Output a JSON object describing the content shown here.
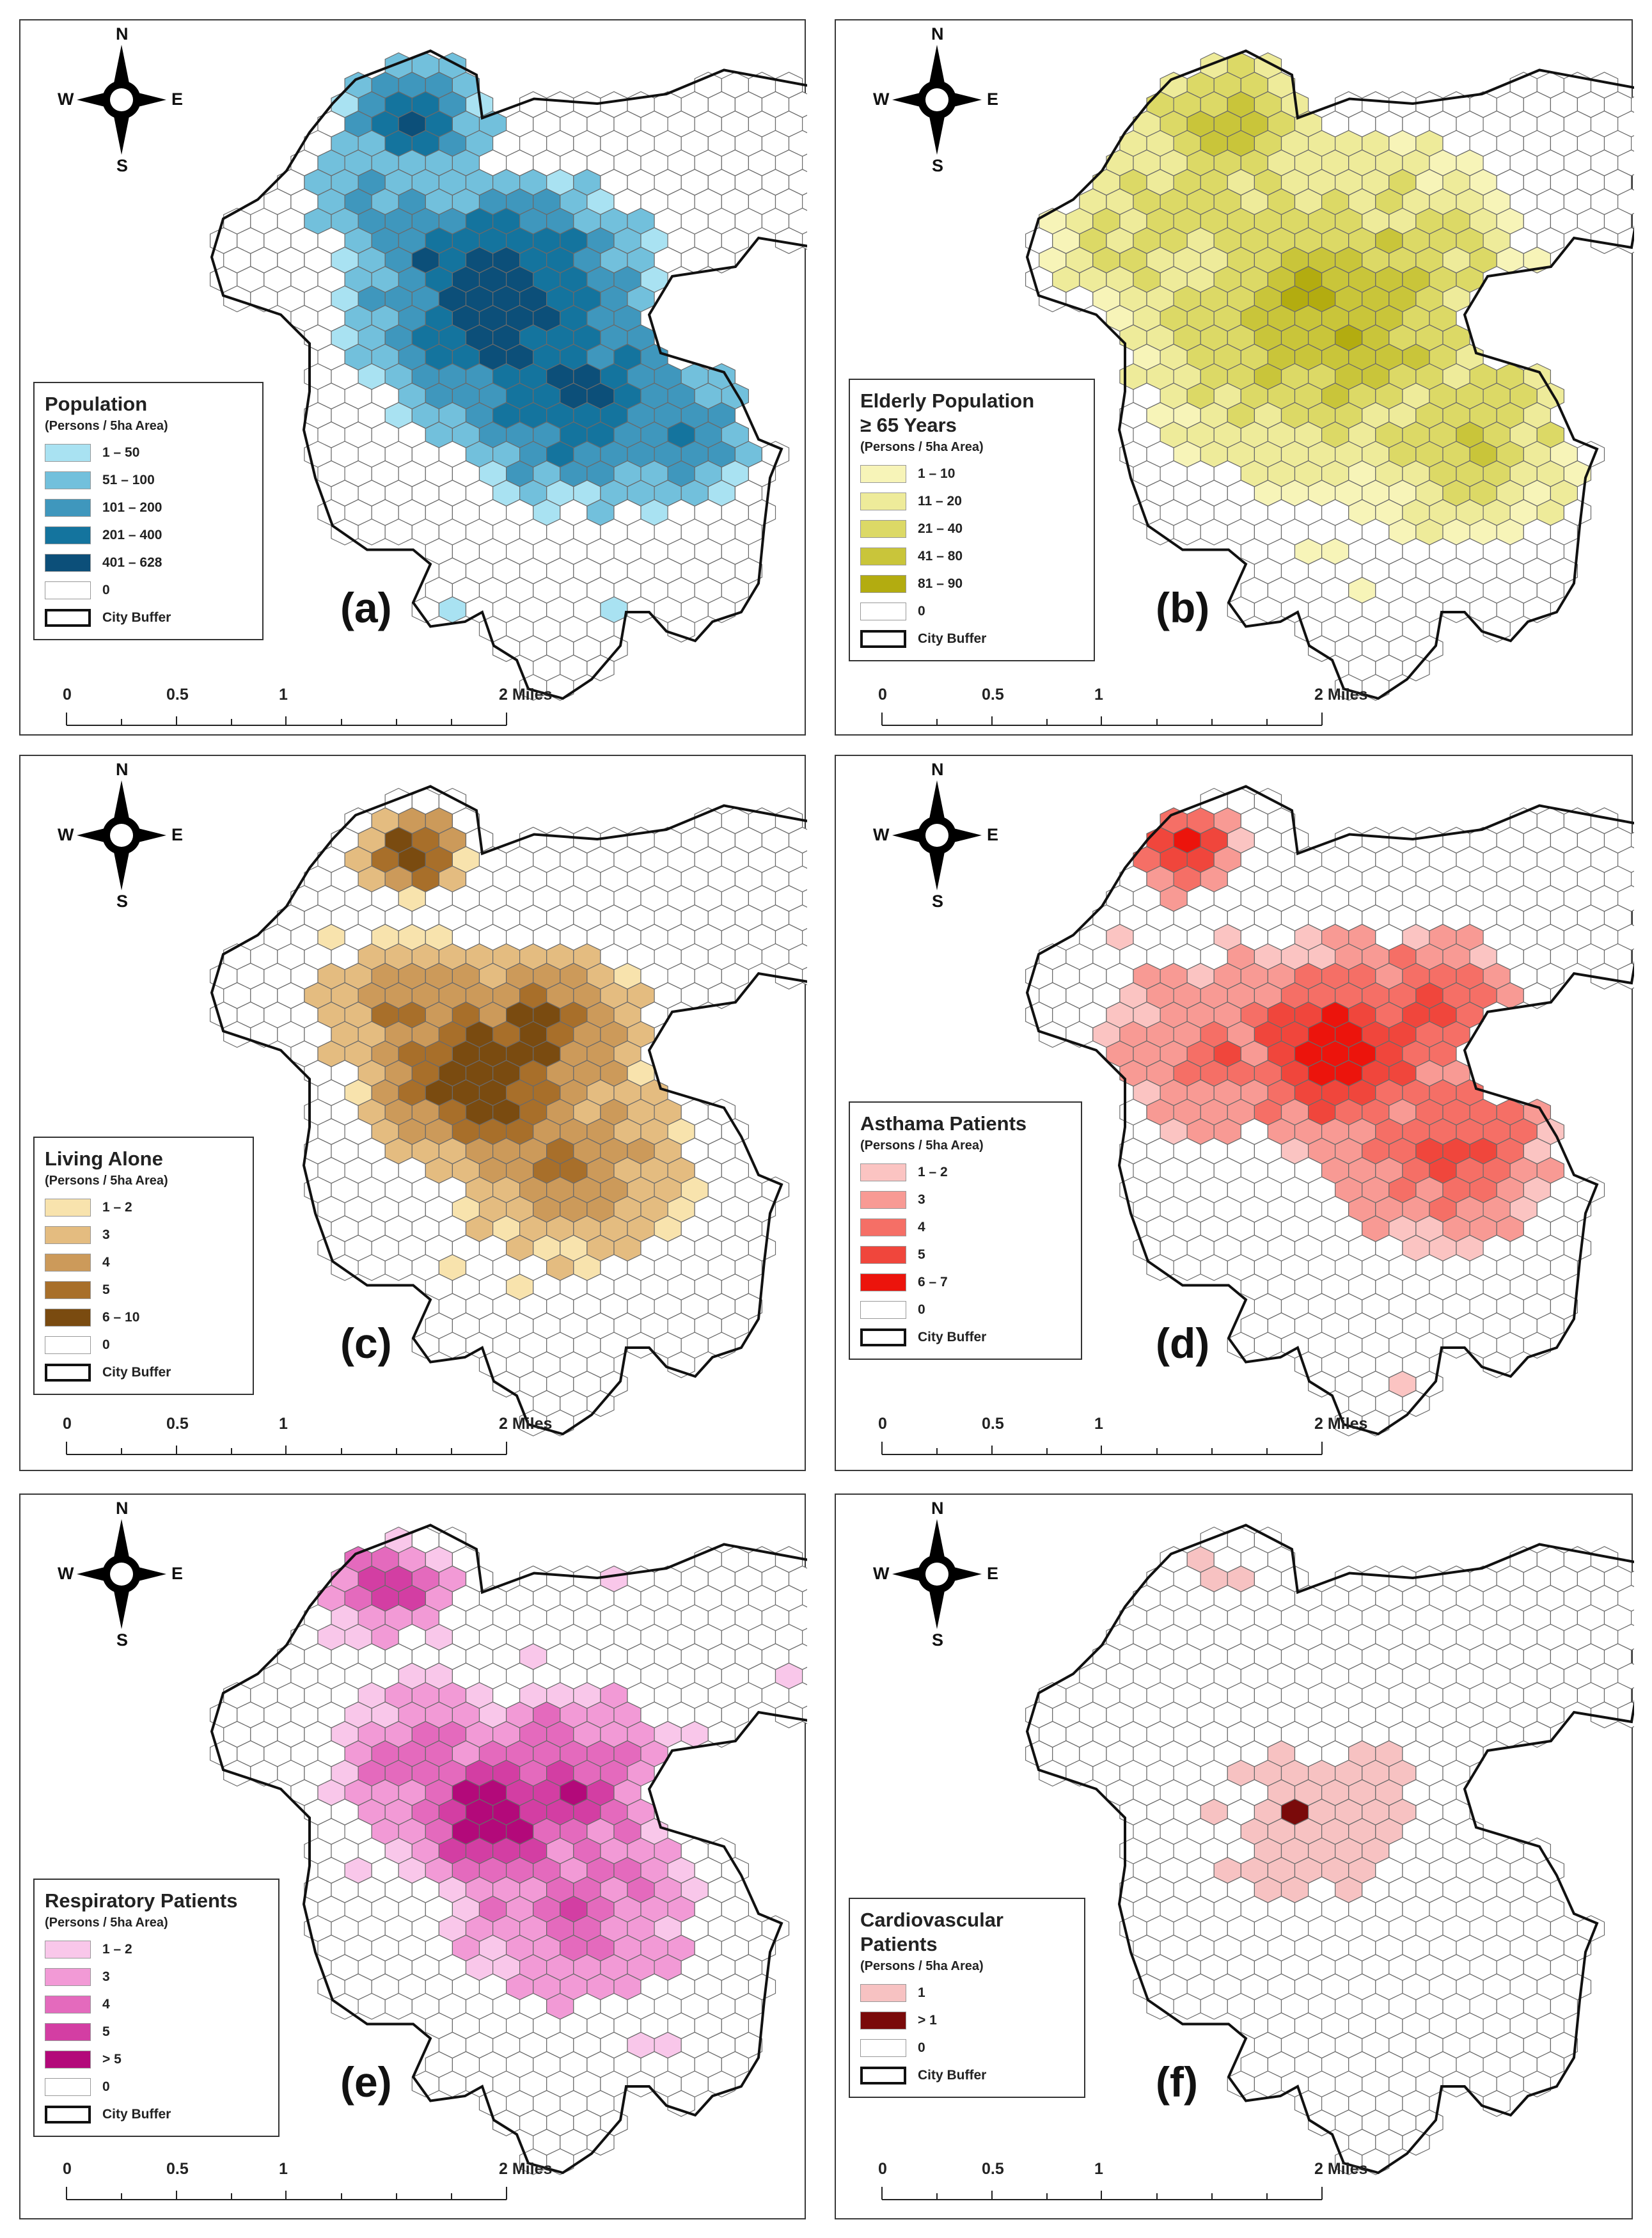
{
  "compass": {
    "n": "N",
    "s": "S",
    "e": "E",
    "w": "W"
  },
  "scale": {
    "t0": "0",
    "t1": "0.5",
    "t2": "1",
    "t3": "2 Miles"
  },
  "buffer_label": "City Buffer",
  "panels": [
    {
      "key": "a",
      "label": "(a)",
      "title": "Population",
      "unit": "(Persons / 5ha Area)",
      "classes": [
        "1 – 50",
        "51 – 100",
        "101 – 200",
        "201 – 400",
        "401 – 628",
        "0"
      ],
      "colors": [
        "#a9e2f2",
        "#72c0dc",
        "#3f97bd",
        "#14749e",
        "#0c4f79",
        "#ffffff"
      ]
    },
    {
      "key": "b",
      "label": "(b)",
      "title": "Elderly Population",
      "title2": "≥ 65 Years",
      "unit": "(Persons / 5ha Area)",
      "classes": [
        "1 – 10",
        "11 – 20",
        "21 – 40",
        "41 – 80",
        "81 – 90",
        "0"
      ],
      "colors": [
        "#f7f4b8",
        "#eeeb9a",
        "#dcd966",
        "#c9c53a",
        "#b3ac10",
        "#ffffff"
      ]
    },
    {
      "key": "c",
      "label": "(c)",
      "title": "Living Alone",
      "unit": "(Persons / 5ha Area)",
      "classes": [
        "1 – 2",
        "3",
        "4",
        "5",
        "6 – 10",
        "0"
      ],
      "colors": [
        "#f8e3ad",
        "#e4bc80",
        "#cc9a5a",
        "#a86f2a",
        "#7a4b10",
        "#ffffff"
      ]
    },
    {
      "key": "d",
      "label": "(d)",
      "title": "Asthama Patients",
      "unit": "(Persons / 5ha Area)",
      "classes": [
        "1 – 2",
        "3",
        "4",
        "5",
        "6 – 7",
        "0"
      ],
      "colors": [
        "#fbc4c2",
        "#f89a94",
        "#f56f66",
        "#f0463c",
        "#ec140c",
        "#ffffff"
      ]
    },
    {
      "key": "e",
      "label": "(e)",
      "title": "Respiratory Patients",
      "unit": "(Persons / 5ha Area)",
      "classes": [
        "1 – 2",
        "3",
        "4",
        "5",
        "> 5",
        "0"
      ],
      "colors": [
        "#f9c7ea",
        "#f29ad6",
        "#e46abd",
        "#d33ea3",
        "#b3097a",
        "#ffffff"
      ]
    },
    {
      "key": "f",
      "label": "(f)",
      "title": "Cardiovascular",
      "title2": "Patients",
      "unit": "(Persons / 5ha Area)",
      "classes": [
        "1",
        "> 1",
        "0"
      ],
      "colors": [
        "#f7c2c2",
        "#7a0a0a",
        "#ffffff"
      ]
    }
  ]
}
